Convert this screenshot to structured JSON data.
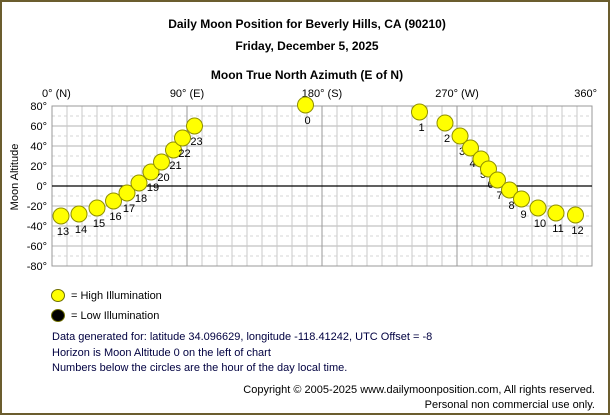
{
  "header": {
    "title": "Daily Moon Position for Beverly Hills, CA (90210)",
    "date": "Friday, December 5, 2025"
  },
  "chart_data": {
    "type": "scatter",
    "title": "Moon True North Azimuth (E of N)",
    "xlabel": "Moon True North Azimuth (E of N)",
    "ylabel": "Moon Altitude",
    "xlim": [
      0,
      360
    ],
    "ylim": [
      -80,
      80
    ],
    "grid": "on",
    "grid_step_deg": 10,
    "horizon_altitude": 0,
    "x_tick_labels": [
      {
        "value": 0,
        "label": "0° (N)"
      },
      {
        "value": 90,
        "label": "90° (E)"
      },
      {
        "value": 180,
        "label": "180° (S)"
      },
      {
        "value": 270,
        "label": "270° (W)"
      },
      {
        "value": 360,
        "label": "360°"
      }
    ],
    "y_tick_labels": [
      {
        "value": 80,
        "label": "80°"
      },
      {
        "value": 60,
        "label": "60°"
      },
      {
        "value": 40,
        "label": "40°"
      },
      {
        "value": 20,
        "label": "20°"
      },
      {
        "value": 0,
        "label": "0°"
      },
      {
        "value": -20,
        "label": "-20°"
      },
      {
        "value": -40,
        "label": "-40°"
      },
      {
        "value": -60,
        "label": "-60°"
      },
      {
        "value": -80,
        "label": "-80°"
      }
    ],
    "series": [
      {
        "name": "High Illumination",
        "color": "#ffff00",
        "points": [
          {
            "hour": "0",
            "azimuth": 169,
            "altitude": 81
          },
          {
            "hour": "1",
            "azimuth": 245,
            "altitude": 74
          },
          {
            "hour": "2",
            "azimuth": 262,
            "altitude": 63
          },
          {
            "hour": "3",
            "azimuth": 272,
            "altitude": 50
          },
          {
            "hour": "4",
            "azimuth": 279,
            "altitude": 38
          },
          {
            "hour": "5",
            "azimuth": 286,
            "altitude": 27
          },
          {
            "hour": "6",
            "azimuth": 291,
            "altitude": 17
          },
          {
            "hour": "7",
            "azimuth": 297,
            "altitude": 6
          },
          {
            "hour": "8",
            "azimuth": 305,
            "altitude": -4
          },
          {
            "hour": "9",
            "azimuth": 313,
            "altitude": -13
          },
          {
            "hour": "10",
            "azimuth": 324,
            "altitude": -22
          },
          {
            "hour": "11",
            "azimuth": 336,
            "altitude": -27
          },
          {
            "hour": "12",
            "azimuth": 349,
            "altitude": -29
          },
          {
            "hour": "13",
            "azimuth": 6,
            "altitude": -30
          },
          {
            "hour": "14",
            "azimuth": 18,
            "altitude": -28
          },
          {
            "hour": "15",
            "azimuth": 30,
            "altitude": -22
          },
          {
            "hour": "16",
            "azimuth": 41,
            "altitude": -15
          },
          {
            "hour": "17",
            "azimuth": 50,
            "altitude": -7
          },
          {
            "hour": "18",
            "azimuth": 58,
            "altitude": 3
          },
          {
            "hour": "19",
            "azimuth": 66,
            "altitude": 14
          },
          {
            "hour": "20",
            "azimuth": 73,
            "altitude": 24
          },
          {
            "hour": "21",
            "azimuth": 81,
            "altitude": 36
          },
          {
            "hour": "22",
            "azimuth": 87,
            "altitude": 48
          },
          {
            "hour": "23",
            "azimuth": 95,
            "altitude": 60
          }
        ]
      },
      {
        "name": "Low Illumination",
        "color": "#000000",
        "points": []
      }
    ]
  },
  "legend": {
    "items": [
      {
        "key": "high",
        "color": "#ffff00",
        "label": "= High Illumination"
      },
      {
        "key": "low",
        "color": "#000000",
        "label": "= Low Illumination"
      }
    ]
  },
  "notes": [
    "Data generated for: latitude 34.096629, longitude -118.41242, UTC Offset = -8",
    "Horizon is Moon Altitude 0 on the left of chart",
    "Numbers below the circles are the hour of the day local time."
  ],
  "footer": [
    "Copyright © 2005-2025 www.dailymoonposition.com, All rights reserved.",
    "Personal non commercial use only."
  ],
  "colors": {
    "window_border": "#6b5d2e",
    "background": "#ffffff",
    "grid_major": "#999999",
    "grid_minor": "#c9c9c9",
    "grid_dashed": "#d6d6d6",
    "horizon_line": "#000000",
    "point_stroke": "#8f8f00",
    "note_text": "#000040",
    "high_illumination": "#ffff00",
    "low_illumination": "#000000"
  }
}
